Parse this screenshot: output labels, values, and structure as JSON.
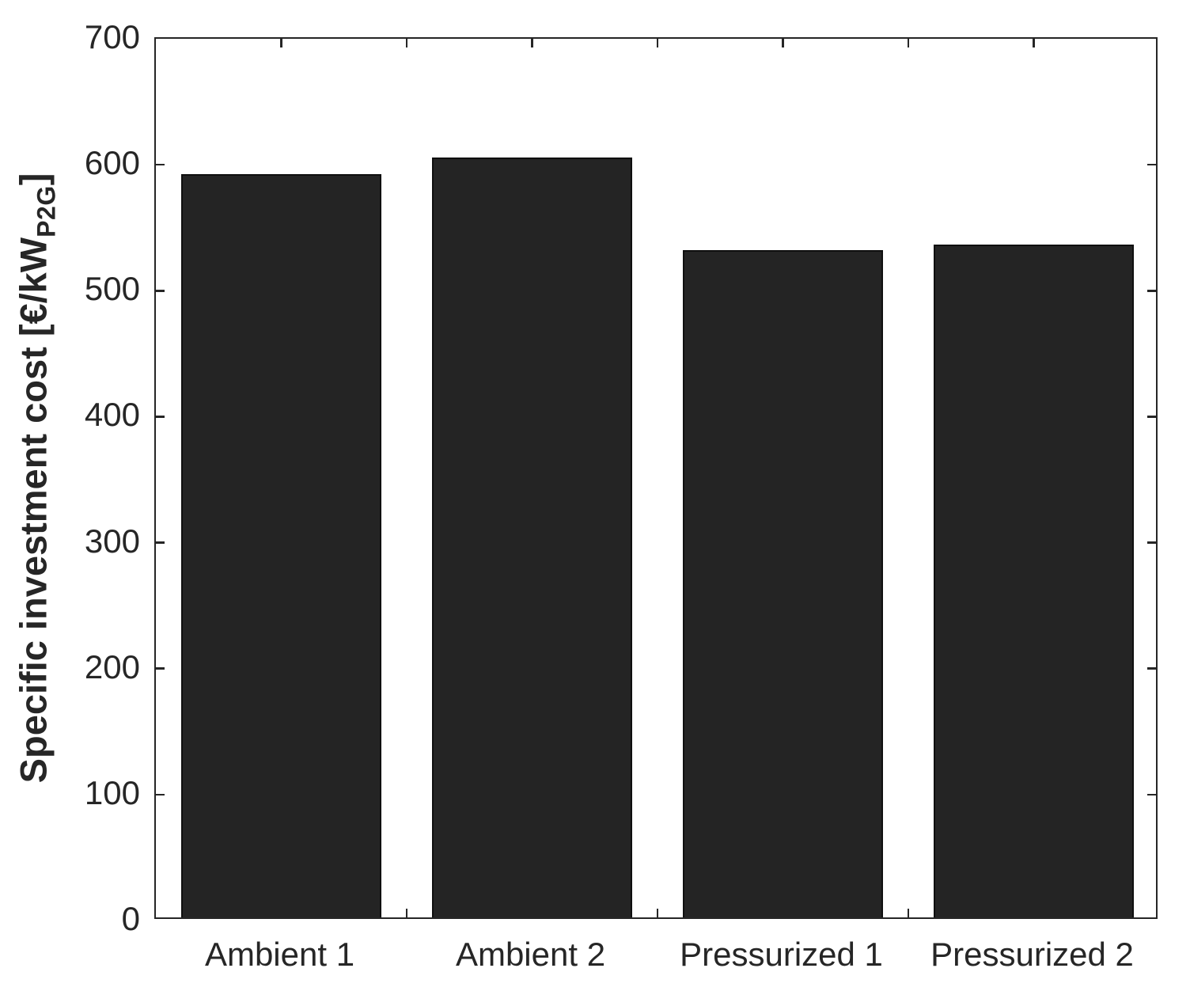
{
  "chart_data": {
    "type": "bar",
    "title": "",
    "categories": [
      "Ambient 1",
      "Ambient 2",
      "Pressurized 1",
      "Pressurized 2"
    ],
    "values": [
      590,
      603,
      530,
      534
    ],
    "series_name": "Specific investment cost",
    "ylabel_main": "Specific investment cost [€/kW",
    "ylabel_sub": "P2G",
    "ylabel_close": "]",
    "xlabel": "",
    "ylim": [
      0,
      700
    ],
    "yticks": [
      0,
      100,
      200,
      300,
      400,
      500,
      600,
      700
    ],
    "xlim": [
      0.5,
      4.5
    ],
    "bar_positions": [
      1,
      2,
      3,
      4
    ],
    "bar_width_units": 0.8,
    "xtick_minor_positions": [
      1.0,
      1.5,
      2.0,
      2.5,
      3.0,
      3.5,
      4.0
    ],
    "grid": false,
    "legend": null,
    "tick_direction": "in",
    "colors": {
      "bar_fill": "#242424",
      "bar_edge": "#0f0f0f",
      "axis": "#262626",
      "text": "#262626",
      "background": "#ffffff"
    }
  }
}
